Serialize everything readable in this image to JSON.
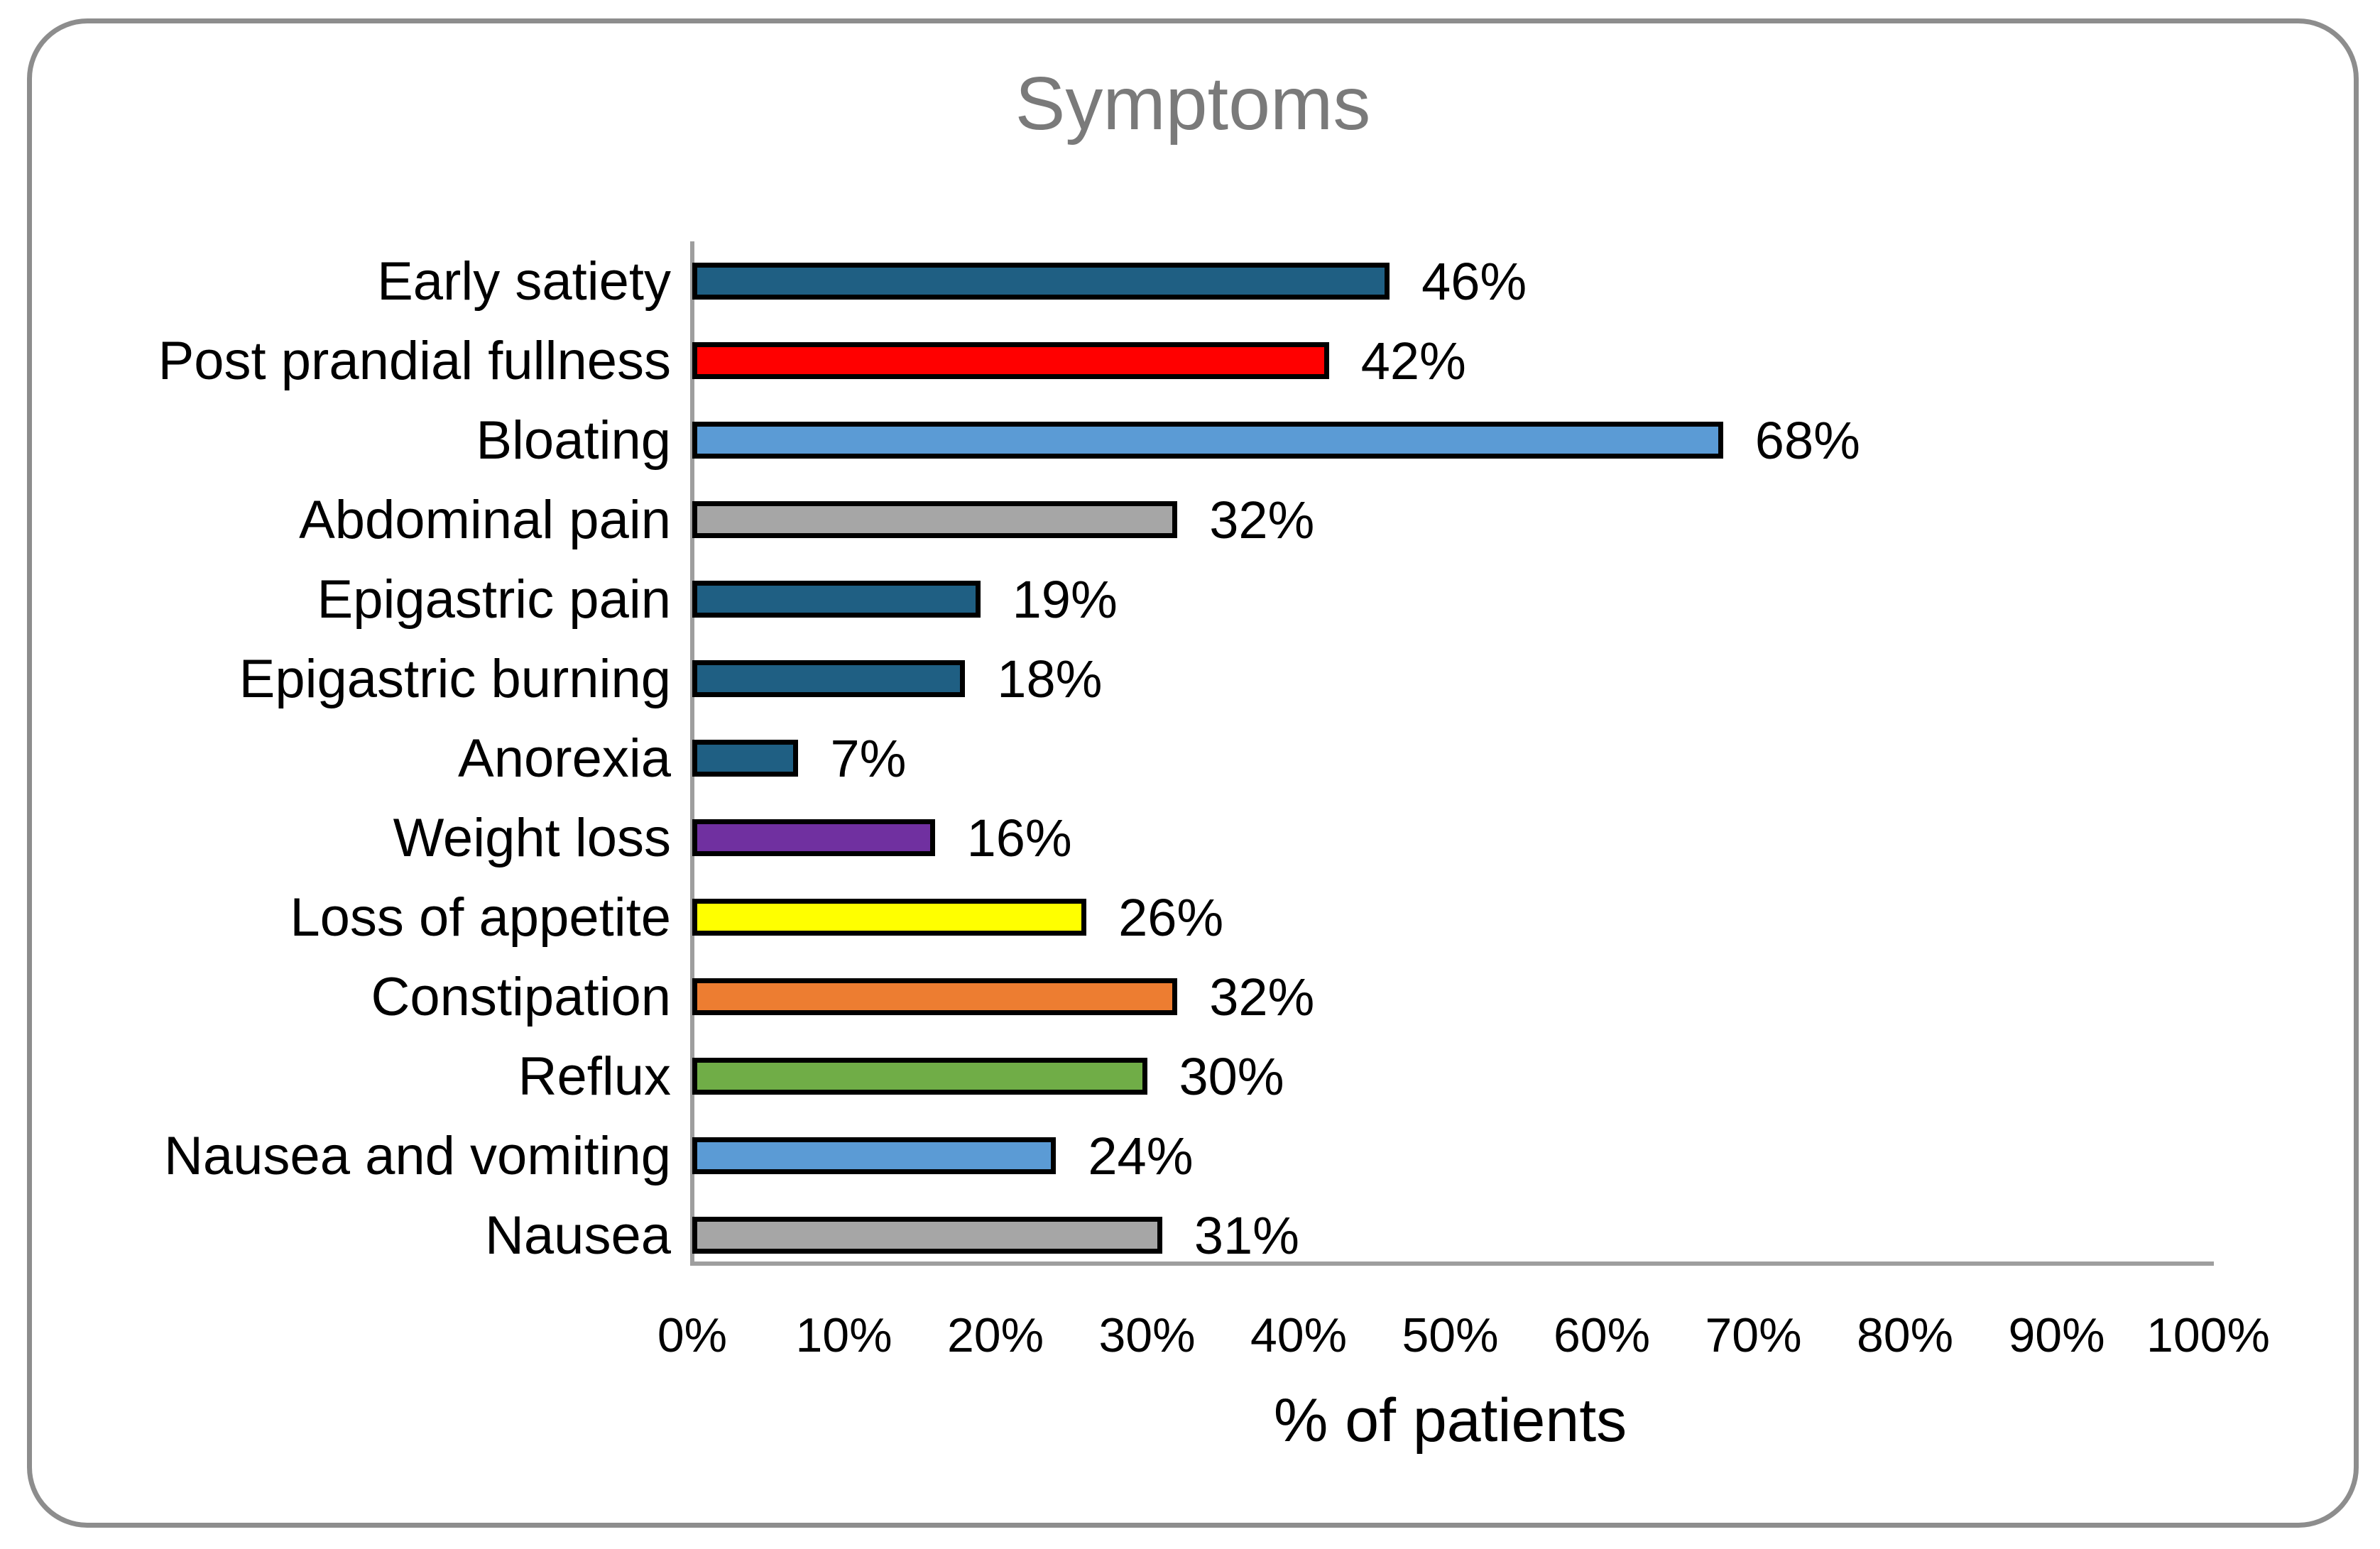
{
  "chart_data": {
    "type": "bar",
    "orientation": "horizontal",
    "title": "Symptoms",
    "xlabel": "% of patients",
    "categories": [
      "Early satiety",
      "Post prandial fullness",
      "Bloating",
      "Abdominal pain",
      "Epigastric pain",
      "Epigastric burning",
      "Anorexia",
      "Weight loss",
      "Loss of appetite",
      "Constipation",
      "Reflux",
      "Nausea and vomiting",
      "Nausea"
    ],
    "values": [
      46,
      42,
      68,
      32,
      19,
      18,
      7,
      16,
      26,
      32,
      30,
      24,
      31
    ],
    "value_labels": [
      "46%",
      "42%",
      "68%",
      "32%",
      "19%",
      "18%",
      "7%",
      "16%",
      "26%",
      "32%",
      "30%",
      "24%",
      "31%"
    ],
    "bar_colors": [
      "#1F5F83",
      "#FF0000",
      "#5B9BD5",
      "#A6A6A6",
      "#1F5F83",
      "#1F5F83",
      "#1F5F83",
      "#7030A0",
      "#FFFF00",
      "#ED7D31",
      "#70AD47",
      "#5B9BD5",
      "#A6A6A6"
    ],
    "bar_border_color": "#000000",
    "x_ticks": [
      "0%",
      "10%",
      "20%",
      "30%",
      "40%",
      "50%",
      "60%",
      "70%",
      "80%",
      "90%",
      "100%"
    ],
    "xlim": [
      0,
      100
    ],
    "grid": false,
    "legend": "none",
    "title_color": "#7A7A7A",
    "axis_color": "#9E9E9E",
    "text_color": "#000000",
    "frame_border_color": "#8D8D8D"
  }
}
